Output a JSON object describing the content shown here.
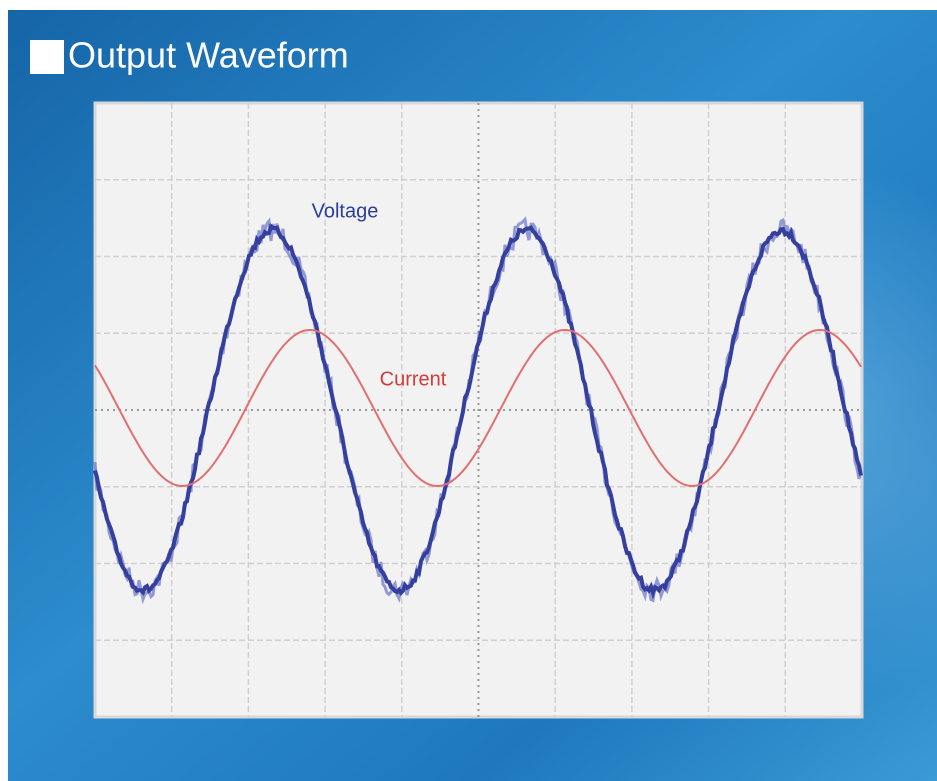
{
  "header": {
    "title": "Output Waveform"
  },
  "plot": {
    "labels": {
      "voltage": "Voltage",
      "current": "Current"
    }
  }
}
